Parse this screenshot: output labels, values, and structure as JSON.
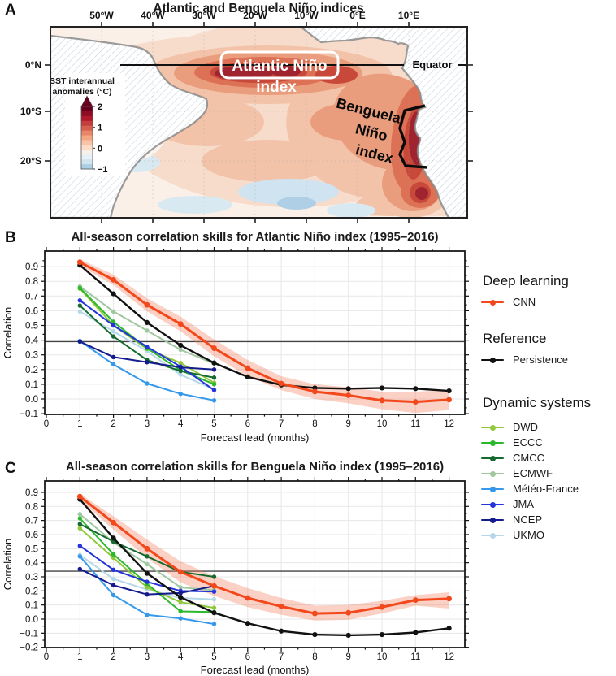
{
  "panels": {
    "a": "A",
    "b": "B",
    "c": "C"
  },
  "map": {
    "title": "Atlantic and Benguela Niño indices",
    "lon_ticks": [
      "50°W",
      "40°W",
      "30°W",
      "20°W",
      "10°W",
      "0°E",
      "10°E"
    ],
    "lat_ticks": [
      "0°N",
      "10°S",
      "20°S"
    ],
    "labels": {
      "atlantic_line1": "Atlantic Niño",
      "atlantic_line2": "index",
      "benguela1": "Benguela",
      "benguela2": "Niño",
      "benguela3": "index",
      "equator": "Equator"
    },
    "colorbar": {
      "title_line1": "SST interannual",
      "title_line2": "anomalies (°C)",
      "ticks": [
        "2",
        "1",
        "0",
        "−1"
      ],
      "range": [
        -1,
        2
      ]
    }
  },
  "colors": {
    "cnn": "#F3481B",
    "persistence": "#111111",
    "dwd": "#8FC93A",
    "eccc": "#2CB82C",
    "cmcc": "#156B2E",
    "ecmwf": "#9FC89F",
    "meteo_france": "#3498EC",
    "jma": "#2433DC",
    "ncep": "#141B8C",
    "ukmo": "#B5D7E8",
    "band": "rgba(243,112,74,0.32)",
    "refline": "#444444"
  },
  "chart_data": [
    {
      "type": "line",
      "title": "All-season correlation skills for Atlantic Niño index (1995–2016)",
      "xlabel": "Forecast lead (months)",
      "ylabel": "Correlation",
      "xticks": [
        0,
        1,
        2,
        3,
        4,
        5,
        6,
        7,
        8,
        9,
        10,
        11,
        12
      ],
      "yticks": [
        0.9,
        0.8,
        0.7,
        0.6,
        0.5,
        0.4,
        0.3,
        0.2,
        0.1,
        0.0,
        -0.1
      ],
      "ylim": [
        -0.105,
        1.005
      ],
      "refline": 0.39,
      "grid": true,
      "band": {
        "series": "CNN",
        "x": [
          1,
          2,
          3,
          4,
          5,
          6,
          7,
          8,
          9,
          10,
          11,
          12
        ],
        "upper": [
          0.95,
          0.845,
          0.685,
          0.56,
          0.405,
          0.265,
          0.155,
          0.1,
          0.08,
          0.05,
          0.05,
          0.06
        ],
        "lower": [
          0.905,
          0.775,
          0.595,
          0.46,
          0.29,
          0.155,
          0.06,
          0.0,
          -0.03,
          -0.07,
          -0.095,
          -0.075
        ]
      },
      "series": [
        {
          "name": "UKMO",
          "key": "ukmo",
          "x": [
            1,
            2,
            3,
            4,
            5
          ],
          "values": [
            0.595,
            0.46,
            0.325,
            0.165,
            0.065
          ]
        },
        {
          "name": "ECMWF",
          "key": "ecmwf",
          "x": [
            1,
            2,
            3,
            4,
            5
          ],
          "values": [
            0.765,
            0.595,
            0.465,
            0.335,
            0.24
          ]
        },
        {
          "name": "DWD",
          "key": "dwd",
          "x": [
            1,
            2,
            3,
            4,
            5
          ],
          "values": [
            0.75,
            0.5,
            0.34,
            0.245,
            0.11
          ]
        },
        {
          "name": "ECCC",
          "key": "eccc",
          "x": [
            1,
            2,
            3,
            4,
            5
          ],
          "values": [
            0.755,
            0.525,
            0.345,
            0.195,
            0.1
          ]
        },
        {
          "name": "CMCC",
          "key": "cmcc",
          "x": [
            1,
            2,
            3,
            4,
            5
          ],
          "values": [
            0.635,
            0.425,
            0.265,
            0.19,
            0.145
          ]
        },
        {
          "name": "Météo-France",
          "key": "meteo_france",
          "x": [
            1,
            2,
            3,
            4,
            5
          ],
          "values": [
            0.395,
            0.235,
            0.105,
            0.035,
            -0.01
          ]
        },
        {
          "name": "JMA",
          "key": "jma",
          "x": [
            1,
            2,
            3,
            4,
            5
          ],
          "values": [
            0.67,
            0.5,
            0.355,
            0.22,
            0.06
          ]
        },
        {
          "name": "NCEP",
          "key": "ncep",
          "x": [
            1,
            2,
            3,
            4,
            5
          ],
          "values": [
            0.39,
            0.285,
            0.25,
            0.215,
            0.2
          ]
        },
        {
          "name": "Persistence",
          "key": "persistence",
          "x": [
            1,
            2,
            3,
            4,
            5,
            6,
            7,
            8,
            9,
            10,
            11,
            12
          ],
          "values": [
            0.91,
            0.715,
            0.52,
            0.365,
            0.245,
            0.15,
            0.095,
            0.075,
            0.07,
            0.075,
            0.07,
            0.055
          ]
        },
        {
          "name": "CNN",
          "key": "cnn",
          "x": [
            1,
            2,
            3,
            4,
            5,
            6,
            7,
            8,
            9,
            10,
            11,
            12
          ],
          "values": [
            0.93,
            0.81,
            0.64,
            0.51,
            0.345,
            0.21,
            0.105,
            0.05,
            0.025,
            -0.01,
            -0.02,
            -0.005
          ]
        }
      ]
    },
    {
      "type": "line",
      "title": "All-season correlation skills for Benguela Niño index (1995–2016)",
      "xlabel": "Forecast lead (months)",
      "ylabel": "Correlation",
      "xticks": [
        0,
        1,
        2,
        3,
        4,
        5,
        6,
        7,
        8,
        9,
        10,
        11,
        12
      ],
      "yticks": [
        0.9,
        0.8,
        0.7,
        0.6,
        0.5,
        0.4,
        0.3,
        0.2,
        0.1,
        0.0,
        -0.1,
        -0.2
      ],
      "ylim": [
        -0.202,
        0.98
      ],
      "refline": 0.34,
      "grid": true,
      "band": {
        "series": "CNN",
        "x": [
          1,
          2,
          3,
          4,
          5,
          6,
          7,
          8,
          9,
          10,
          11,
          12
        ],
        "upper": [
          0.89,
          0.73,
          0.565,
          0.41,
          0.305,
          0.22,
          0.15,
          0.095,
          0.1,
          0.13,
          0.17,
          0.19
        ],
        "lower": [
          0.845,
          0.635,
          0.435,
          0.26,
          0.165,
          0.085,
          0.03,
          -0.01,
          -0.005,
          0.04,
          0.095,
          0.075
        ]
      },
      "series": [
        {
          "name": "UKMO",
          "key": "ukmo",
          "x": [
            1,
            2,
            3,
            4,
            5
          ],
          "values": [
            0.455,
            0.285,
            0.21,
            0.15,
            0.14
          ]
        },
        {
          "name": "ECMWF",
          "key": "ecmwf",
          "x": [
            1,
            2,
            3,
            4,
            5
          ],
          "values": [
            0.745,
            0.545,
            0.39,
            0.225,
            0.205
          ]
        },
        {
          "name": "DWD",
          "key": "dwd",
          "x": [
            1,
            2,
            3,
            4,
            5
          ],
          "values": [
            0.645,
            0.435,
            0.225,
            0.12,
            0.08
          ]
        },
        {
          "name": "ECCC",
          "key": "eccc",
          "x": [
            1,
            2,
            3,
            4,
            5
          ],
          "values": [
            0.715,
            0.46,
            0.25,
            0.055,
            0.05
          ]
        },
        {
          "name": "CMCC",
          "key": "cmcc",
          "x": [
            1,
            2,
            3,
            4,
            5
          ],
          "values": [
            0.675,
            0.55,
            0.445,
            0.335,
            0.3
          ]
        },
        {
          "name": "Météo-France",
          "key": "meteo_france",
          "x": [
            1,
            2,
            3,
            4,
            5
          ],
          "values": [
            0.445,
            0.17,
            0.03,
            0.005,
            -0.035
          ]
        },
        {
          "name": "JMA",
          "key": "jma",
          "x": [
            1,
            2,
            3,
            4,
            5
          ],
          "values": [
            0.52,
            0.35,
            0.265,
            0.2,
            0.195
          ]
        },
        {
          "name": "NCEP",
          "key": "ncep",
          "x": [
            1,
            2,
            3,
            4,
            5
          ],
          "values": [
            0.355,
            0.24,
            0.175,
            0.185,
            0.235
          ]
        },
        {
          "name": "Persistence",
          "key": "persistence",
          "x": [
            1,
            2,
            3,
            4,
            5,
            6,
            7,
            8,
            9,
            10,
            11,
            12
          ],
          "values": [
            0.85,
            0.575,
            0.325,
            0.155,
            0.045,
            -0.03,
            -0.085,
            -0.11,
            -0.115,
            -0.11,
            -0.095,
            -0.065
          ]
        },
        {
          "name": "CNN",
          "key": "cnn",
          "x": [
            1,
            2,
            3,
            4,
            5,
            6,
            7,
            8,
            9,
            10,
            11,
            12
          ],
          "values": [
            0.87,
            0.685,
            0.5,
            0.335,
            0.235,
            0.15,
            0.09,
            0.04,
            0.045,
            0.085,
            0.135,
            0.145
          ]
        }
      ]
    }
  ],
  "legend": {
    "sections": [
      {
        "title": "Deep learning",
        "items": [
          {
            "label": "CNN",
            "key": "cnn"
          }
        ]
      },
      {
        "title": "Reference",
        "items": [
          {
            "label": "Persistence",
            "key": "persistence"
          }
        ]
      },
      {
        "title": "Dynamic systems",
        "items": [
          {
            "label": "DWD",
            "key": "dwd"
          },
          {
            "label": "ECCC",
            "key": "eccc"
          },
          {
            "label": "CMCC",
            "key": "cmcc"
          },
          {
            "label": "ECMWF",
            "key": "ecmwf"
          },
          {
            "label": "Météo-France",
            "key": "meteo_france"
          },
          {
            "label": "JMA",
            "key": "jma"
          },
          {
            "label": "NCEP",
            "key": "ncep"
          },
          {
            "label": "UKMO",
            "key": "ukmo"
          }
        ]
      }
    ]
  }
}
